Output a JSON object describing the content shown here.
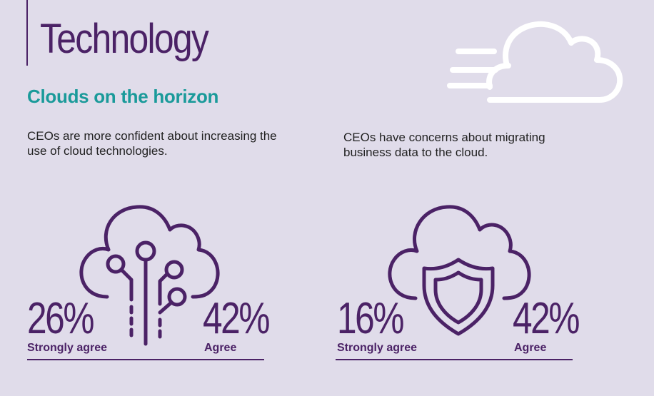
{
  "heading": "Technology",
  "subheading": "Clouds on the horizon",
  "panels": [
    {
      "description": "CEOs are more confident about increasing the use of cloud technologies.",
      "stat1": {
        "value": "26%",
        "label": "Strongly agree"
      },
      "stat2": {
        "value": "42%",
        "label": "Agree"
      }
    },
    {
      "description": "CEOs have concerns about migrating business data to the cloud.",
      "stat1": {
        "value": "16%",
        "label": "Strongly agree"
      },
      "stat2": {
        "value": "42%",
        "label": "Agree"
      }
    }
  ],
  "icons": [
    "cloud-speed-icon",
    "cloud-circuit-icon",
    "cloud-shield-icon"
  ],
  "colors": {
    "background": "#e0dcea",
    "primary": "#4b2266",
    "accent": "#1a9a9a",
    "white": "#ffffff"
  }
}
